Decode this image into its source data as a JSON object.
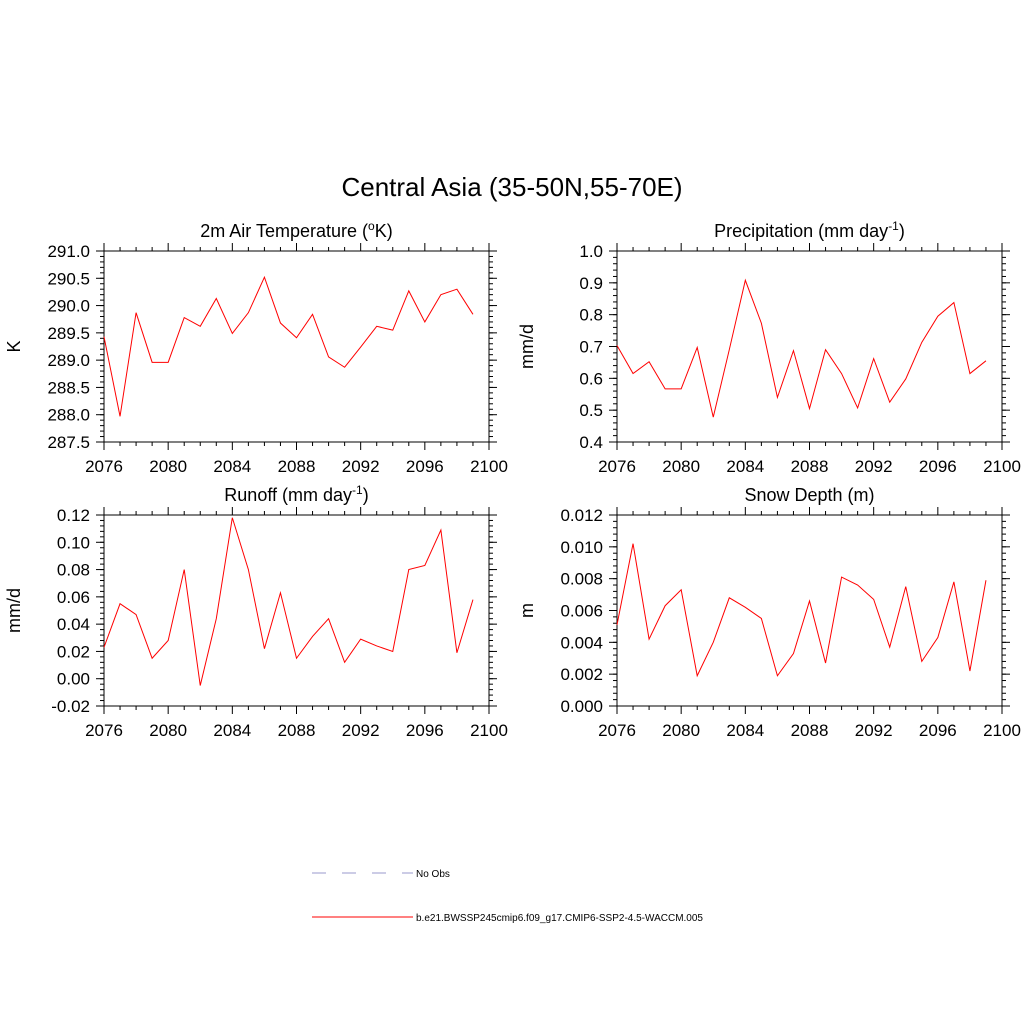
{
  "figure": {
    "title": "Central Asia (35-50N,55-70E)"
  },
  "colors": {
    "model_line": "#ff0000",
    "obs_line": "#9999cc",
    "axis": "#000000"
  },
  "chart_data": [
    {
      "id": "temperature",
      "type": "line",
      "title_base": "2m Air Temperature (",
      "title_sup": "o",
      "title_tail": "K)",
      "ylabel": "K",
      "xlim": [
        2076,
        2100
      ],
      "x_ticks": [
        2076,
        2080,
        2084,
        2088,
        2092,
        2096,
        2100
      ],
      "ylim": [
        287.5,
        291.0
      ],
      "y_ticks": [
        287.5,
        288.0,
        288.5,
        289.0,
        289.5,
        290.0,
        290.5,
        291.0
      ],
      "y_tick_labels": [
        "287.5",
        "288.0",
        "288.5",
        "289.0",
        "289.5",
        "290.0",
        "290.5",
        "291.0"
      ],
      "y_minor_step": 0.1,
      "x": [
        2076,
        2077,
        2078,
        2079,
        2080,
        2081,
        2082,
        2083,
        2084,
        2085,
        2086,
        2087,
        2088,
        2089,
        2090,
        2091,
        2092,
        2093,
        2094,
        2095,
        2096,
        2097,
        2098,
        2099
      ],
      "y": [
        289.43,
        287.97,
        289.87,
        288.96,
        288.96,
        289.78,
        289.62,
        290.13,
        289.49,
        289.87,
        290.52,
        289.68,
        289.41,
        289.84,
        289.06,
        288.87,
        289.24,
        289.62,
        289.55,
        290.27,
        289.7,
        290.2,
        290.3,
        289.84
      ]
    },
    {
      "id": "precipitation",
      "type": "line",
      "title_base": "Precipitation (mm day",
      "title_sup": "-1",
      "title_tail": ")",
      "ylabel": "mm/d",
      "xlim": [
        2076,
        2100
      ],
      "x_ticks": [
        2076,
        2080,
        2084,
        2088,
        2092,
        2096,
        2100
      ],
      "ylim": [
        0.4,
        1.0
      ],
      "y_ticks": [
        0.4,
        0.5,
        0.6,
        0.7,
        0.8,
        0.9,
        1.0
      ],
      "y_tick_labels": [
        "0.4",
        "0.5",
        "0.6",
        "0.7",
        "0.8",
        "0.9",
        "1.0"
      ],
      "y_minor_step": 0.02,
      "x": [
        2076,
        2077,
        2078,
        2079,
        2080,
        2081,
        2082,
        2083,
        2084,
        2085,
        2086,
        2087,
        2088,
        2089,
        2090,
        2091,
        2092,
        2093,
        2094,
        2095,
        2096,
        2097,
        2098,
        2099
      ],
      "y": [
        0.703,
        0.615,
        0.652,
        0.567,
        0.567,
        0.697,
        0.478,
        0.69,
        0.908,
        0.773,
        0.54,
        0.687,
        0.505,
        0.69,
        0.615,
        0.507,
        0.662,
        0.525,
        0.598,
        0.713,
        0.795,
        0.838,
        0.615,
        0.655
      ]
    },
    {
      "id": "runoff",
      "type": "line",
      "title_base": "Runoff (mm day",
      "title_sup": "-1",
      "title_tail": ")",
      "ylabel": "mm/d",
      "xlim": [
        2076,
        2100
      ],
      "x_ticks": [
        2076,
        2080,
        2084,
        2088,
        2092,
        2096,
        2100
      ],
      "ylim": [
        -0.02,
        0.12
      ],
      "y_ticks": [
        -0.02,
        0.0,
        0.02,
        0.04,
        0.06,
        0.08,
        0.1,
        0.12
      ],
      "y_tick_labels": [
        "-0.02",
        "0.00",
        "0.02",
        "0.04",
        "0.06",
        "0.08",
        "0.10",
        "0.12"
      ],
      "y_minor_step": 0.004,
      "x": [
        2076,
        2077,
        2078,
        2079,
        2080,
        2081,
        2082,
        2083,
        2084,
        2085,
        2086,
        2087,
        2088,
        2089,
        2090,
        2091,
        2092,
        2093,
        2094,
        2095,
        2096,
        2097,
        2098,
        2099
      ],
      "y": [
        0.023,
        0.055,
        0.047,
        0.015,
        0.028,
        0.08,
        -0.005,
        0.044,
        0.118,
        0.08,
        0.022,
        0.063,
        0.015,
        0.031,
        0.044,
        0.012,
        0.029,
        0.024,
        0.02,
        0.08,
        0.083,
        0.109,
        0.019,
        0.058
      ]
    },
    {
      "id": "snow",
      "type": "line",
      "title_base": "Snow Depth (m)",
      "title_sup": "",
      "title_tail": "",
      "ylabel": "m",
      "xlim": [
        2076,
        2100
      ],
      "x_ticks": [
        2076,
        2080,
        2084,
        2088,
        2092,
        2096,
        2100
      ],
      "ylim": [
        0.0,
        0.012
      ],
      "y_ticks": [
        0.0,
        0.002,
        0.004,
        0.006,
        0.008,
        0.01,
        0.012
      ],
      "y_tick_labels": [
        "0.000",
        "0.002",
        "0.004",
        "0.006",
        "0.008",
        "0.010",
        "0.012"
      ],
      "y_minor_step": 0.0004,
      "x": [
        2076,
        2077,
        2078,
        2079,
        2080,
        2081,
        2082,
        2083,
        2084,
        2085,
        2086,
        2087,
        2088,
        2089,
        2090,
        2091,
        2092,
        2093,
        2094,
        2095,
        2096,
        2097,
        2098,
        2099
      ],
      "y": [
        0.0051,
        0.0102,
        0.0042,
        0.0063,
        0.0073,
        0.0019,
        0.004,
        0.0068,
        0.0062,
        0.0055,
        0.0019,
        0.0033,
        0.0066,
        0.0027,
        0.0081,
        0.0076,
        0.0067,
        0.0037,
        0.0075,
        0.0028,
        0.0043,
        0.0078,
        0.0022,
        0.0079
      ]
    }
  ],
  "legend": [
    {
      "label": "No Obs",
      "style": "dashed",
      "color": "#9999cc"
    },
    {
      "label": "b.e21.BWSSP245cmip6.f09_g17.CMIP6-SSP2-4.5-WACCM.005",
      "style": "solid",
      "color": "#ff0000"
    }
  ]
}
